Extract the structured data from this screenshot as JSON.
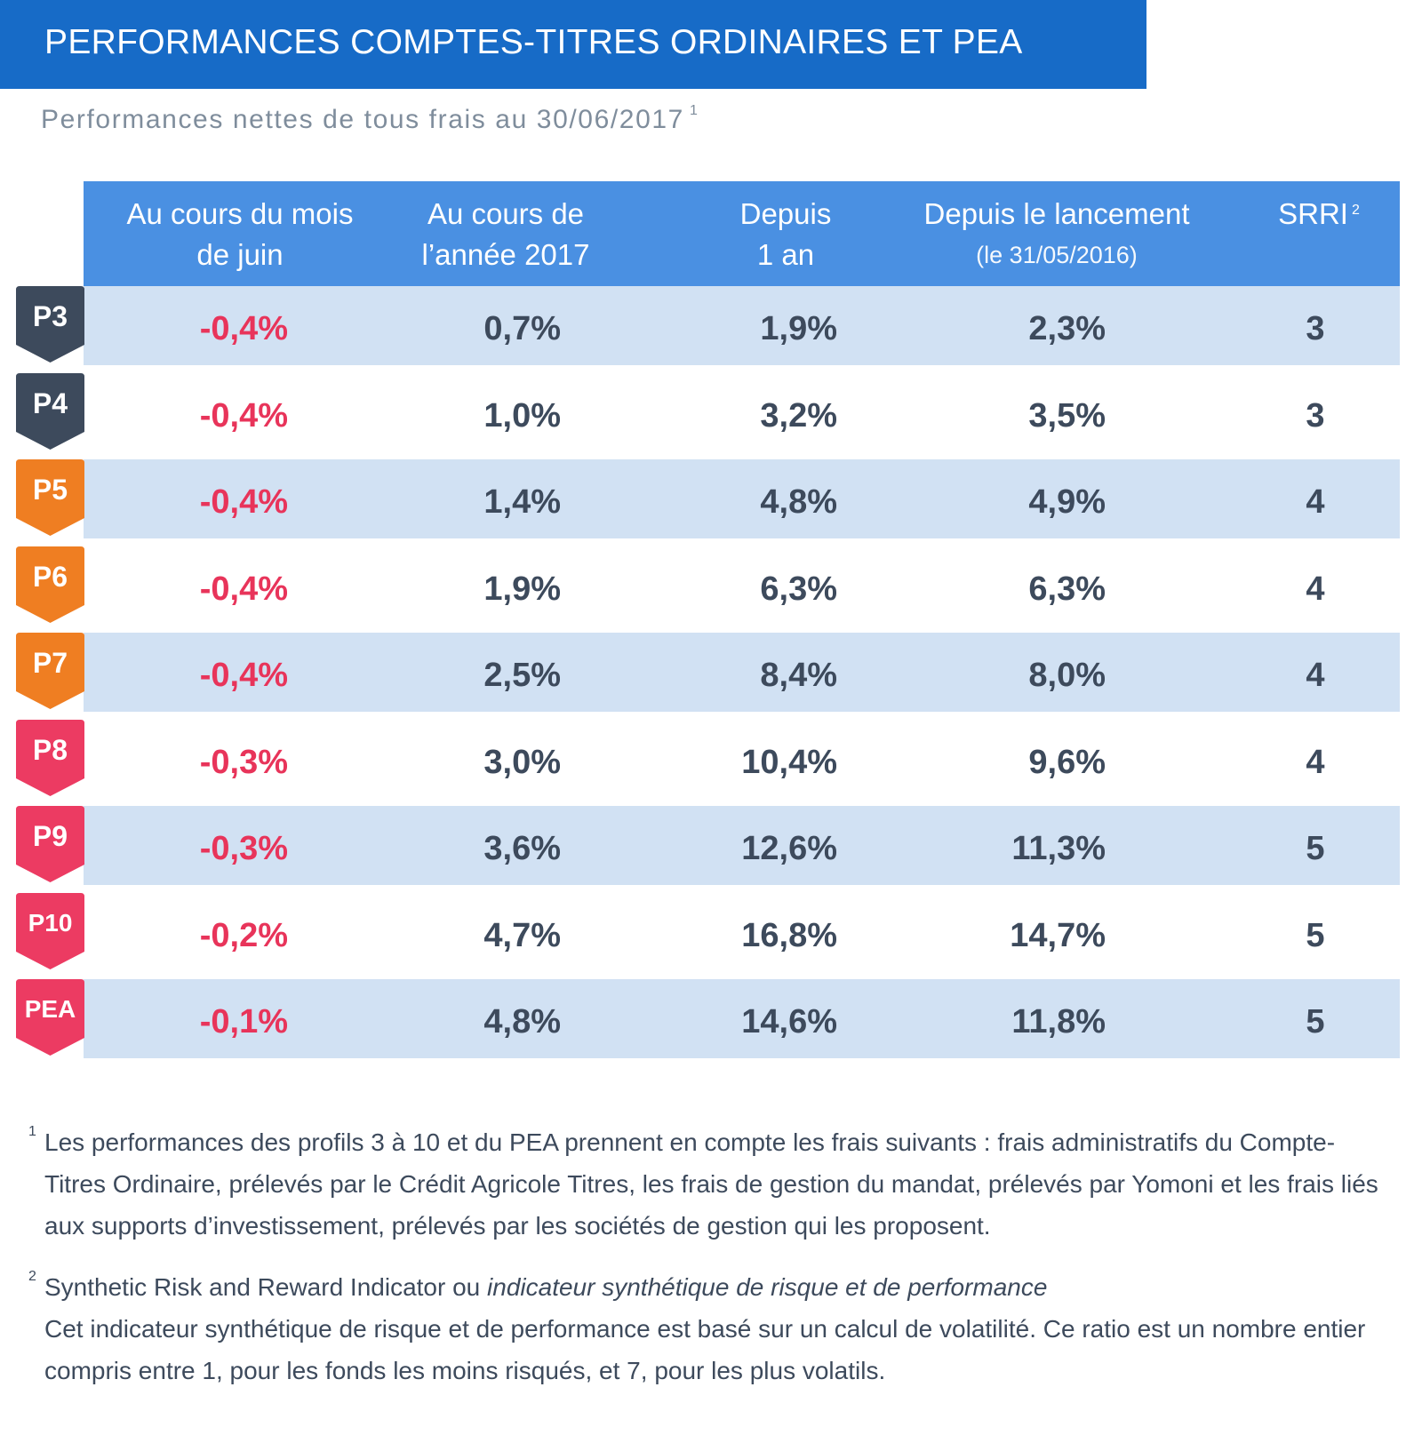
{
  "title": "PERFORMANCES COMPTES-TITRES ORDINAIRES ET PEA",
  "subtitle": "Performances nettes de tous frais au 30/06/2017",
  "subtitle_note": "1",
  "headers": {
    "col1": [
      "Au cours du mois",
      "de juin"
    ],
    "col2": [
      "Au cours de",
      "l’année 2017"
    ],
    "col3": [
      "Depuis",
      "1 an"
    ],
    "col4": [
      "Depuis le lancement",
      "(le 31/05/2016)"
    ],
    "col5": "SRRI",
    "col5_note": "2"
  },
  "colors": {
    "dark": "#3d4a5c",
    "orange": "#ef7e22",
    "pink": "#ec3b62",
    "negative": "#e8345a",
    "header": "#4a90e2",
    "title": "#176bc7",
    "shade": "#d1e1f3"
  },
  "rows": [
    {
      "profile": "P3",
      "badge": "dark",
      "juin": "-0,4%",
      "annee": "0,7%",
      "un_an": "1,9%",
      "lancement": "2,3%",
      "srri": "3"
    },
    {
      "profile": "P4",
      "badge": "dark",
      "juin": "-0,4%",
      "annee": "1,0%",
      "un_an": "3,2%",
      "lancement": "3,5%",
      "srri": "3"
    },
    {
      "profile": "P5",
      "badge": "orange",
      "juin": "-0,4%",
      "annee": "1,4%",
      "un_an": "4,8%",
      "lancement": "4,9%",
      "srri": "4"
    },
    {
      "profile": "P6",
      "badge": "orange",
      "juin": "-0,4%",
      "annee": "1,9%",
      "un_an": "6,3%",
      "lancement": "6,3%",
      "srri": "4"
    },
    {
      "profile": "P7",
      "badge": "orange",
      "juin": "-0,4%",
      "annee": "2,5%",
      "un_an": "8,4%",
      "lancement": "8,0%",
      "srri": "4"
    },
    {
      "profile": "P8",
      "badge": "pink",
      "juin": "-0,3%",
      "annee": "3,0%",
      "un_an": "10,4%",
      "lancement": "9,6%",
      "srri": "4"
    },
    {
      "profile": "P9",
      "badge": "pink",
      "juin": "-0,3%",
      "annee": "3,6%",
      "un_an": "12,6%",
      "lancement": "11,3%",
      "srri": "5"
    },
    {
      "profile": "P10",
      "badge": "pink",
      "juin": "-0,2%",
      "annee": "4,7%",
      "un_an": "16,8%",
      "lancement": "14,7%",
      "srri": "5"
    },
    {
      "profile": "PEA",
      "badge": "pink",
      "juin": "-0,1%",
      "annee": "4,8%",
      "un_an": "14,6%",
      "lancement": "11,8%",
      "srri": "5"
    }
  ],
  "footnotes": {
    "note1_mark": "1",
    "note1_text": "Les performances des profils 3 à 10 et du PEA prennent en compte les frais suivants : frais administratifs du Compte-Titres Ordinaire, prélevés par le Crédit Agricole Titres, les frais de gestion du mandat, prélevés par Yomoni et les frais liés aux supports d’investissement, prélevés par les sociétés de gestion qui les proposent.",
    "note2_mark": "2",
    "note2_lead": "Synthetic Risk and Reward Indicator ou",
    "note2_italic": "indicateur synthétique de risque et de performance",
    "note2_text": "Cet indicateur synthétique de risque et de performance est basé sur un calcul de volatilité. Ce ratio est un nombre entier compris entre 1, pour les fonds les moins risqués, et 7, pour les plus volatils."
  }
}
